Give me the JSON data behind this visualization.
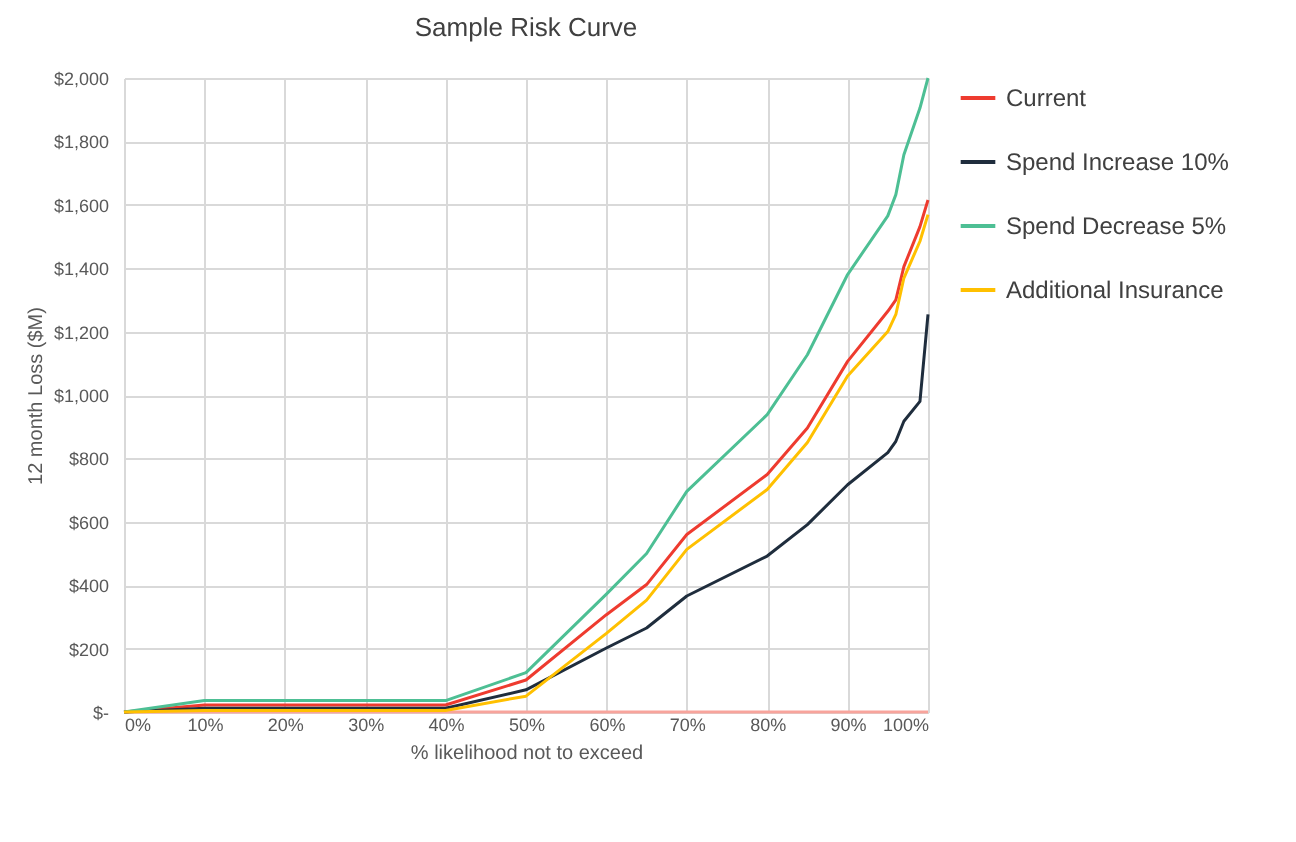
{
  "chart_data": {
    "type": "line",
    "title": "Sample Risk Curve",
    "xlabel": "% likelihood not to exceed",
    "ylabel": "12 month Loss ($M)",
    "x": [
      0,
      10,
      40,
      50,
      60,
      65,
      70,
      80,
      85,
      90,
      95,
      96,
      97,
      99,
      100
    ],
    "series": [
      {
        "name": "Current",
        "color": "#ee3b2f",
        "values": [
          0,
          22,
          22,
          101,
          307,
          402,
          560,
          749,
          896,
          1106,
          1264,
          1300,
          1405,
          1531,
          1615
        ]
      },
      {
        "name": "Spend Increase 10%",
        "color": "#1f2d3d",
        "values": [
          0,
          12,
          12,
          70,
          202,
          265,
          366,
          492,
          591,
          717,
          818,
          854,
          917,
          980,
          1254
        ]
      },
      {
        "name": "Spend Decrease 5%",
        "color": "#4dbf94",
        "values": [
          0,
          36,
          36,
          124,
          372,
          500,
          696,
          938,
          1127,
          1380,
          1565,
          1632,
          1758,
          1905,
          2000
        ]
      },
      {
        "name": "Additional Insurance",
        "color": "#ffc000",
        "values": [
          0,
          5,
          5,
          50,
          248,
          353,
          513,
          702,
          850,
          1060,
          1200,
          1254,
          1369,
          1485,
          1569
        ]
      },
      {
        "color": "#f8a49c",
        "x": [
          0,
          100
        ],
        "values": [
          0,
          0
        ]
      }
    ],
    "xlim": [
      0,
      100
    ],
    "xticks": [
      {
        "value": 0,
        "label": "0%"
      },
      {
        "value": 10,
        "label": "10%"
      },
      {
        "value": 20,
        "label": "20%"
      },
      {
        "value": 30,
        "label": "30%"
      },
      {
        "value": 40,
        "label": "40%"
      },
      {
        "value": 50,
        "label": "50%"
      },
      {
        "value": 60,
        "label": "60%"
      },
      {
        "value": 70,
        "label": "70%"
      },
      {
        "value": 80,
        "label": "80%"
      },
      {
        "value": 90,
        "label": "90%"
      },
      {
        "value": 100,
        "label": "100%"
      }
    ],
    "ylim": [
      0,
      2000
    ],
    "yticks": [
      {
        "value": 0,
        "label": "$-"
      },
      {
        "value": 200,
        "label": "$200"
      },
      {
        "value": 400,
        "label": "$400"
      },
      {
        "value": 600,
        "label": "$600"
      },
      {
        "value": 800,
        "label": "$800"
      },
      {
        "value": 1000,
        "label": "$1,000"
      },
      {
        "value": 1200,
        "label": "$1,200"
      },
      {
        "value": 1400,
        "label": "$1,400"
      },
      {
        "value": 1600,
        "label": "$1,600"
      },
      {
        "value": 1800,
        "label": "$1,800"
      },
      {
        "value": 2000,
        "label": "$2,000"
      }
    ],
    "grid": true,
    "legend": "right",
    "marker": "none",
    "line_style": "solid"
  }
}
